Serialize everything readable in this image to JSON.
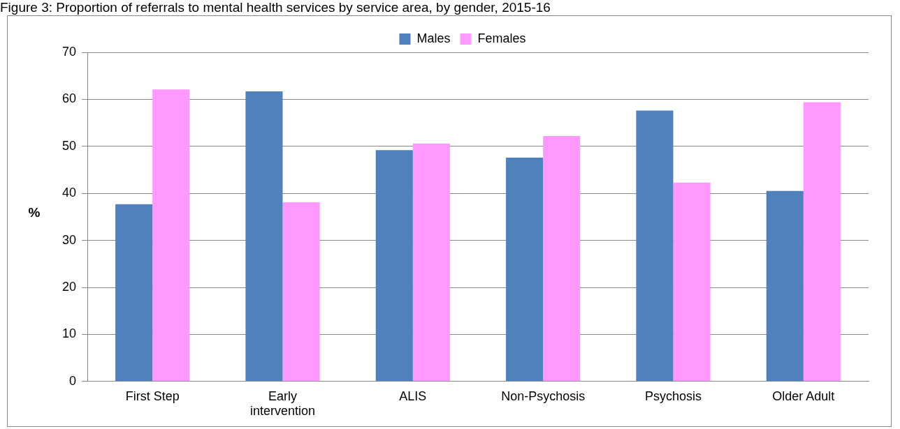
{
  "chart_data": {
    "type": "bar",
    "title": "Figure 3: Proportion of referrals to mental health services by service area, by gender, 2015-16",
    "ylabel": "%",
    "categories": [
      "First Step",
      "Early intervention",
      "ALIS",
      "Non-Psychosis",
      "Psychosis",
      "Older Adult"
    ],
    "series": [
      {
        "name": "Males",
        "color": "#4f81bd",
        "values": [
          37.7,
          61.7,
          49.2,
          47.6,
          57.6,
          40.5
        ]
      },
      {
        "name": "Females",
        "color": "#ff99ff",
        "values": [
          62.1,
          38.1,
          50.6,
          52.2,
          42.3,
          59.4
        ]
      }
    ],
    "ylim": [
      0,
      70
    ],
    "yticks": [
      0,
      10,
      20,
      30,
      40,
      50,
      60,
      70
    ],
    "grid": "y",
    "legend": "top"
  }
}
